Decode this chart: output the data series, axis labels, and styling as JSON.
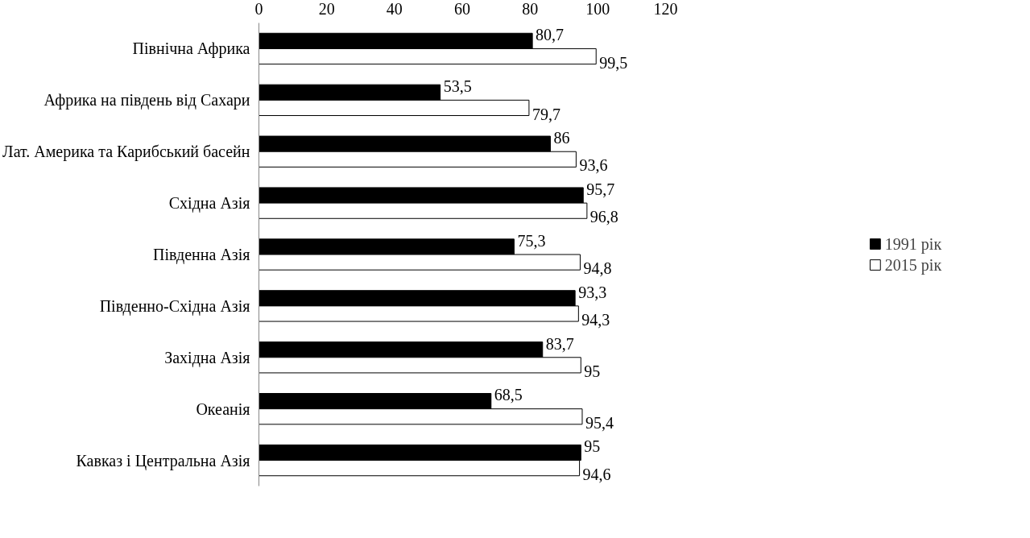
{
  "chart_data": {
    "type": "bar",
    "orientation": "horizontal",
    "categories": [
      "Північна Африка",
      "Африка на південь від Сахари",
      "Лат. Америка та Карибський басейн",
      "Східна Азія",
      "Південна Азія",
      "Південно-Східна Азія",
      "Західна Азія",
      "Океанія",
      "Кавказ і Центральна Азія"
    ],
    "series": [
      {
        "name": "1991 рік",
        "color": "#000000",
        "values": [
          80.7,
          53.5,
          86,
          95.7,
          75.3,
          93.3,
          83.7,
          68.5,
          95
        ],
        "value_labels": [
          "80,7",
          "53,5",
          "86",
          "95,7",
          "75,3",
          "93,3",
          "83,7",
          "68,5",
          "95"
        ]
      },
      {
        "name": "2015 рік",
        "color": "#000000",
        "values": [
          99.5,
          79.7,
          93.6,
          96.8,
          94.8,
          94.3,
          95,
          95.4,
          94.6
        ],
        "value_labels": [
          "99,5",
          "79,7",
          "93,6",
          "96,8",
          "94,8",
          "94,3",
          "95",
          "95,4",
          "94,6"
        ]
      }
    ],
    "xlim": [
      0,
      120
    ],
    "xticks": [
      0,
      20,
      40,
      60,
      80,
      100,
      120
    ],
    "grid": false,
    "legend": "right"
  }
}
